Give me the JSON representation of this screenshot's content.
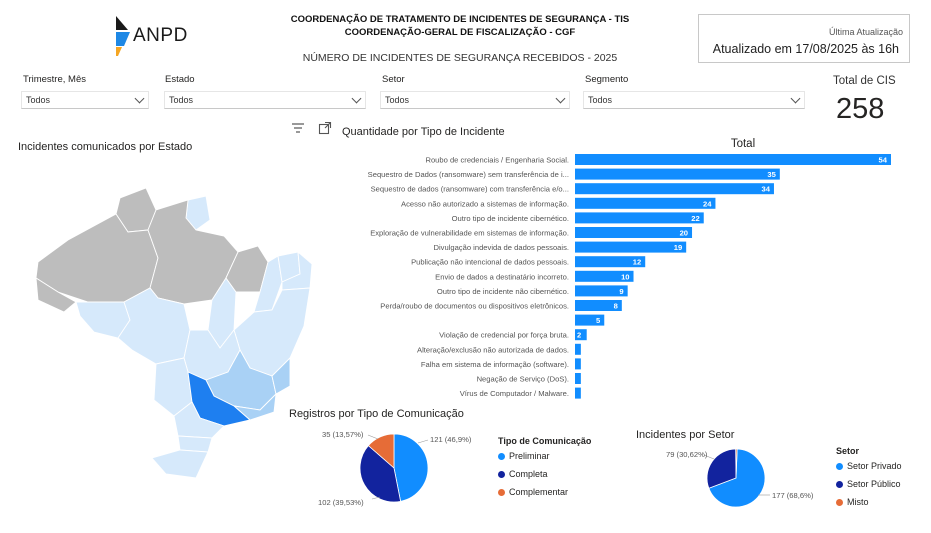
{
  "header": {
    "logo_text": "ANPD",
    "line1": "COORDENAÇÃO DE TRATAMENTO DE INCIDENTES DE SEGURANÇA - TIS",
    "line2": "COORDENAÇÃO-GERAL DE FISCALIZAÇÃO - CGF",
    "subtitle": "NÚMERO DE INCIDENTES DE SEGURANÇA RECEBIDOS - 2025"
  },
  "update": {
    "label": "Última Atualização",
    "value": "Atualizado em 17/08/2025 às 16h"
  },
  "filters": [
    {
      "label": "Trimestre, Mês",
      "value": "Todos"
    },
    {
      "label": "Estado",
      "value": "Todos"
    },
    {
      "label": "Setor",
      "value": "Todos"
    },
    {
      "label": "Segmento",
      "value": "Todos"
    }
  ],
  "kpi": {
    "label": "Total de CIS",
    "value": "258"
  },
  "map": {
    "title": "Incidentes comunicados por Estado",
    "colors": {
      "none": "#bdbdbd",
      "low": "#d6e9fb",
      "mid": "#a9d1f5",
      "high": "#1e7ff0",
      "border": "#ffffff"
    }
  },
  "bar_chart": {
    "section_title": "Quantidade por Tipo de Incidente",
    "icons": [
      "filter-icon",
      "focus-mode-icon"
    ]
  },
  "pie_comunicacao": {
    "title": "Registros por Tipo de Comunicação",
    "legend_title": "Tipo de Comunicação"
  },
  "pie_setor": {
    "title": "Incidentes por Setor",
    "legend_title": "Setor"
  },
  "chart_data": [
    {
      "type": "bar",
      "orientation": "horizontal",
      "title": "Total",
      "color": "#118dff",
      "categories": [
        "Roubo de credenciais / Engenharia Social.",
        "Sequestro de Dados (ransomware) sem transferência de i...",
        "Sequestro de dados (ransomware) com transferência e/o...",
        "Acesso não autorizado a sistemas de informação.",
        "Outro tipo de incidente cibernético.",
        "Exploração de vulnerabilidade em sistemas de informação.",
        "Divulgação indevida de dados pessoais.",
        "Publicação não intencional de dados pessoais.",
        "Envio de dados a destinatário incorreto.",
        "Outro tipo de incidente não cibernético.",
        "Perda/roubo de documentos ou dispositivos eletrônicos.",
        "",
        "Violação de credencial por força bruta.",
        "Alteração/exclusão não autorizada de dados.",
        "Falha em sistema de informação (software).",
        "Negação de Serviço (DoS).",
        "Vírus de Computador / Malware."
      ],
      "values": [
        54,
        35,
        34,
        24,
        22,
        20,
        19,
        12,
        10,
        9,
        8,
        5,
        2,
        1,
        1,
        1,
        1
      ],
      "data_labels": [
        "54",
        "35",
        "34",
        "24",
        "22",
        "20",
        "19",
        "12",
        "10",
        "9",
        "8",
        "5",
        "2",
        "",
        "",
        "",
        ""
      ],
      "xlim": [
        0,
        54
      ]
    },
    {
      "type": "pie",
      "title": "Registros por Tipo de Comunicação",
      "labels": [
        "Preliminar",
        "Completa",
        "Complementar"
      ],
      "values": [
        121,
        102,
        35
      ],
      "data_labels": [
        "121 (46,9%)",
        "102 (39,53%)",
        "35 (13,57%)"
      ],
      "colors": [
        "#118dff",
        "#12239e",
        "#e66c37"
      ]
    },
    {
      "type": "pie",
      "title": "Incidentes por Setor",
      "labels": [
        "Setor Privado",
        "Setor Público",
        "Misto"
      ],
      "values": [
        177,
        79,
        2
      ],
      "data_labels": [
        "177 (68,6%)",
        "79 (30,62%)",
        ""
      ],
      "colors": [
        "#118dff",
        "#12239e",
        "#e66c37"
      ]
    }
  ]
}
